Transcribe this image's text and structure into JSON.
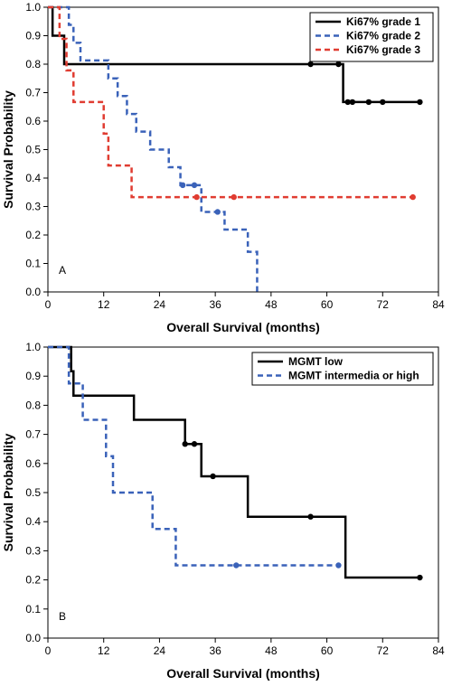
{
  "chart_data": [
    {
      "type": "line",
      "panel_label": "A",
      "xlabel": "Overall Survival (months)",
      "ylabel": "Survival Probability",
      "xlim": [
        0,
        84
      ],
      "ylim": [
        0,
        1
      ],
      "x_ticks": [
        "0",
        "12",
        "24",
        "36",
        "48",
        "60",
        "72",
        "84"
      ],
      "y_ticks": [
        "0.0",
        "0.1",
        "0.2",
        "0.3",
        "0.4",
        "0.5",
        "0.6",
        "0.7",
        "0.8",
        "0.9",
        "1.0"
      ],
      "legend_position": "top-right",
      "series": [
        {
          "name": "Ki67% grade 1",
          "color": "#000000",
          "dashed": false,
          "steps": [
            [
              0,
              1.0
            ],
            [
              1,
              0.9
            ],
            [
              3.5,
              0.8
            ],
            [
              63.5,
              0.667
            ],
            [
              80,
              0.667
            ]
          ],
          "censored": [
            [
              56.5,
              0.8
            ],
            [
              62.5,
              0.8
            ],
            [
              64.5,
              0.667
            ],
            [
              65.5,
              0.667
            ],
            [
              69,
              0.667
            ],
            [
              72,
              0.667
            ],
            [
              80,
              0.667
            ]
          ]
        },
        {
          "name": "Ki67% grade 2",
          "color": "#3a62b9",
          "dashed": true,
          "steps": [
            [
              0,
              1.0
            ],
            [
              4.5,
              0.938
            ],
            [
              5.5,
              0.875
            ],
            [
              7,
              0.813
            ],
            [
              13,
              0.75
            ],
            [
              15,
              0.688
            ],
            [
              17,
              0.625
            ],
            [
              19,
              0.563
            ],
            [
              22,
              0.5
            ],
            [
              26,
              0.438
            ],
            [
              28.5,
              0.375
            ],
            [
              33,
              0.281
            ],
            [
              38,
              0.219
            ],
            [
              43,
              0.141
            ],
            [
              45,
              0.0
            ]
          ],
          "censored": [
            [
              29,
              0.375
            ],
            [
              31.5,
              0.375
            ],
            [
              36.5,
              0.281
            ]
          ]
        },
        {
          "name": "Ki67% grade 3",
          "color": "#e03c31",
          "dashed": true,
          "steps": [
            [
              0,
              1.0
            ],
            [
              2.5,
              0.889
            ],
            [
              4,
              0.778
            ],
            [
              5.5,
              0.667
            ],
            [
              12,
              0.556
            ],
            [
              13,
              0.444
            ],
            [
              18,
              0.333
            ],
            [
              78.5,
              0.333
            ]
          ],
          "censored": [
            [
              32,
              0.333
            ],
            [
              40,
              0.333
            ],
            [
              78.5,
              0.333
            ]
          ]
        }
      ]
    },
    {
      "type": "line",
      "panel_label": "B",
      "xlabel": "Overall Survival (months)",
      "ylabel": "Survival Probability",
      "xlim": [
        0,
        84
      ],
      "ylim": [
        0,
        1
      ],
      "x_ticks": [
        "0",
        "12",
        "24",
        "36",
        "48",
        "60",
        "72",
        "84"
      ],
      "y_ticks": [
        "0.0",
        "0.1",
        "0.2",
        "0.3",
        "0.4",
        "0.5",
        "0.6",
        "0.7",
        "0.8",
        "0.9",
        "1.0"
      ],
      "legend_position": "top-right",
      "series": [
        {
          "name": "MGMT low",
          "color": "#000000",
          "dashed": false,
          "steps": [
            [
              0,
              1.0
            ],
            [
              5,
              0.917
            ],
            [
              5.5,
              0.833
            ],
            [
              18.5,
              0.75
            ],
            [
              29.5,
              0.667
            ],
            [
              33,
              0.556
            ],
            [
              43,
              0.417
            ],
            [
              64,
              0.208
            ],
            [
              80,
              0.208
            ]
          ],
          "censored": [
            [
              29.5,
              0.667
            ],
            [
              31.5,
              0.667
            ],
            [
              35.5,
              0.556
            ],
            [
              56.5,
              0.417
            ],
            [
              80,
              0.208
            ]
          ]
        },
        {
          "name": "MGMT intermedia or high",
          "color": "#3a62b9",
          "dashed": true,
          "steps": [
            [
              0,
              1.0
            ],
            [
              4.5,
              0.875
            ],
            [
              7.5,
              0.75
            ],
            [
              12.5,
              0.625
            ],
            [
              14,
              0.5
            ],
            [
              22.5,
              0.375
            ],
            [
              27.5,
              0.25
            ],
            [
              62.5,
              0.25
            ]
          ],
          "censored": [
            [
              40.5,
              0.25
            ],
            [
              62.5,
              0.25
            ]
          ]
        }
      ]
    }
  ]
}
